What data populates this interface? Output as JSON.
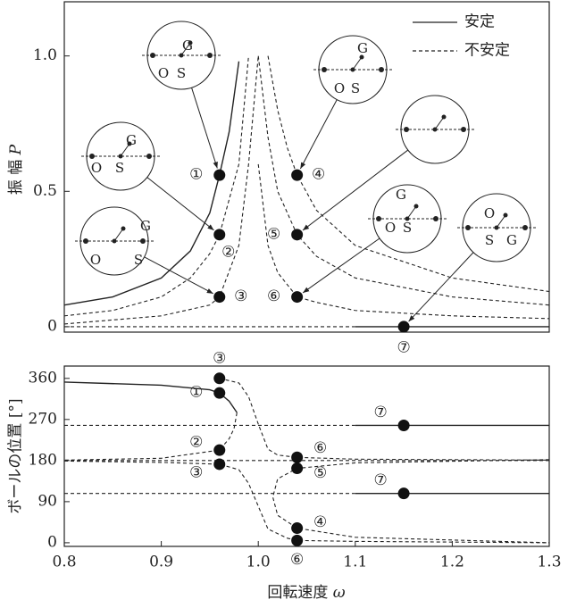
{
  "chart_data": [
    {
      "type": "line",
      "ylabel": "振 幅",
      "ylabel_symbol": "P",
      "xlim": [
        0.8,
        1.3
      ],
      "ylim": [
        -0.02,
        1.2
      ],
      "yticks": [
        0,
        0.5,
        {
          "value": 1,
          "label": "1.0"
        }
      ],
      "legend": [
        {
          "label": "安定",
          "style": "solid"
        },
        {
          "label": "不安定",
          "style": "dashed"
        }
      ],
      "series": [
        {
          "style": "solid",
          "x": [
            0.8,
            0.85,
            0.9,
            0.93,
            0.95,
            0.96,
            0.97,
            0.98
          ],
          "values": [
            0.08,
            0.11,
            0.18,
            0.28,
            0.42,
            0.56,
            0.72,
            0.98
          ]
        },
        {
          "style": "dashed",
          "x": [
            0.8,
            0.85,
            0.9,
            0.93,
            0.95,
            0.96,
            0.98,
            0.99
          ],
          "values": [
            0.04,
            0.06,
            0.11,
            0.18,
            0.27,
            0.34,
            0.6,
            1.0
          ]
        },
        {
          "style": "dashed",
          "x": [
            0.8,
            0.9,
            0.95,
            0.96,
            0.98,
            0.99,
            1.0
          ],
          "values": [
            0.01,
            0.04,
            0.08,
            0.11,
            0.3,
            0.6,
            1.0
          ]
        },
        {
          "style": "dashed",
          "x": [
            1.01,
            1.02,
            1.03,
            1.04,
            1.06,
            1.1,
            1.2,
            1.3
          ],
          "values": [
            1.0,
            0.8,
            0.66,
            0.56,
            0.43,
            0.3,
            0.18,
            0.13
          ]
        },
        {
          "style": "dashed",
          "x": [
            1.0,
            1.01,
            1.02,
            1.04,
            1.06,
            1.1,
            1.2,
            1.3
          ],
          "values": [
            1.0,
            0.7,
            0.5,
            0.34,
            0.26,
            0.18,
            0.11,
            0.08
          ]
        },
        {
          "style": "dashed",
          "x": [
            1.0,
            1.01,
            1.02,
            1.04,
            1.06,
            1.1,
            1.2,
            1.3
          ],
          "values": [
            0.6,
            0.3,
            0.2,
            0.11,
            0.09,
            0.06,
            0.04,
            0.03
          ]
        },
        {
          "style": "dashed",
          "x": [
            0.8,
            1.1
          ],
          "values": [
            0,
            0
          ]
        },
        {
          "style": "solid",
          "x": [
            1.1,
            1.3
          ],
          "values": [
            0,
            0
          ]
        }
      ],
      "points": {
        "x": [
          0.96,
          0.96,
          0.96,
          1.04,
          1.04,
          1.04,
          1.15
        ],
        "values": [
          0.56,
          0.34,
          0.11,
          0.56,
          0.34,
          0.11,
          0
        ],
        "labels": [
          "①",
          "②",
          "③",
          "④",
          "⑤",
          "⑥",
          "⑦"
        ]
      },
      "insets": [
        [
          "O",
          "S",
          "G"
        ],
        [
          "O",
          "S",
          "G"
        ],
        [
          "O",
          "S",
          "G"
        ],
        [
          "O",
          "S",
          "G"
        ],
        [],
        [
          "O",
          "S",
          "G"
        ],
        [
          "O",
          "S",
          "G"
        ]
      ]
    },
    {
      "type": "line",
      "ylabel": "ボールの位置 [°]",
      "xlabel": "回転速度",
      "xlabel_symbol": "ω",
      "xlim": [
        0.8,
        1.3
      ],
      "ylim": [
        -8,
        387
      ],
      "xticks": [
        0.8,
        0.9,
        {
          "value": 1,
          "label": "1.0"
        },
        1.1,
        1.2,
        1.3
      ],
      "yticks": [
        0,
        90,
        180,
        270,
        360
      ],
      "series": [
        {
          "style": "solid",
          "x": [
            0.8,
            0.9,
            0.95,
            0.96,
            0.97,
            0.978
          ],
          "values": [
            352,
            345,
            335,
            328,
            310,
            285
          ]
        },
        {
          "style": "dashed",
          "x": [
            0.978,
            0.975,
            0.97,
            0.96,
            0.9,
            0.8
          ],
          "values": [
            285,
            250,
            228,
            203,
            185,
            181
          ]
        },
        {
          "style": "dashed",
          "x": [
            0.96,
            0.98,
            0.99,
            1.0,
            1.01,
            1.02,
            1.04,
            1.1,
            1.3
          ],
          "values": [
            360,
            350,
            320,
            260,
            205,
            192,
            187,
            183,
            181
          ]
        },
        {
          "style": "dashed",
          "x": [
            0.8,
            0.9,
            0.96,
            0.98,
            0.99,
            1.0,
            1.01,
            1.03,
            1.04,
            1.1,
            1.3
          ],
          "values": [
            179,
            176,
            172,
            160,
            130,
            80,
            30,
            10,
            5,
            3,
            0
          ]
        },
        {
          "style": "dashed",
          "x": [
            1.3,
            1.1,
            1.04,
            1.02,
            1.015,
            1.02,
            1.04,
            1.1,
            1.3
          ],
          "values": [
            182,
            175,
            163,
            140,
            100,
            60,
            32,
            12,
            0
          ]
        },
        {
          "style": "dashed",
          "x": [
            0.8,
            1.3
          ],
          "values": [
            180,
            180
          ]
        },
        {
          "style": "dashed",
          "x": [
            0.8,
            1.1
          ],
          "values": [
            257,
            257
          ]
        },
        {
          "style": "solid",
          "x": [
            1.1,
            1.3
          ],
          "values": [
            257,
            257
          ]
        },
        {
          "style": "dashed",
          "x": [
            0.8,
            1.1
          ],
          "values": [
            108,
            108
          ]
        },
        {
          "style": "solid",
          "x": [
            1.1,
            1.3
          ],
          "values": [
            108,
            108
          ]
        }
      ],
      "points": {
        "x": [
          0.96,
          0.96,
          0.96,
          0.96,
          1.04,
          1.04,
          1.04,
          1.04,
          1.15,
          1.15
        ],
        "values": [
          360,
          328,
          203,
          172,
          187,
          163,
          32,
          5,
          257,
          108
        ],
        "labels": [
          "③",
          "①",
          "②",
          "③",
          "⑥",
          "⑤",
          "④",
          "⑥",
          "⑦",
          "⑦"
        ]
      }
    }
  ]
}
